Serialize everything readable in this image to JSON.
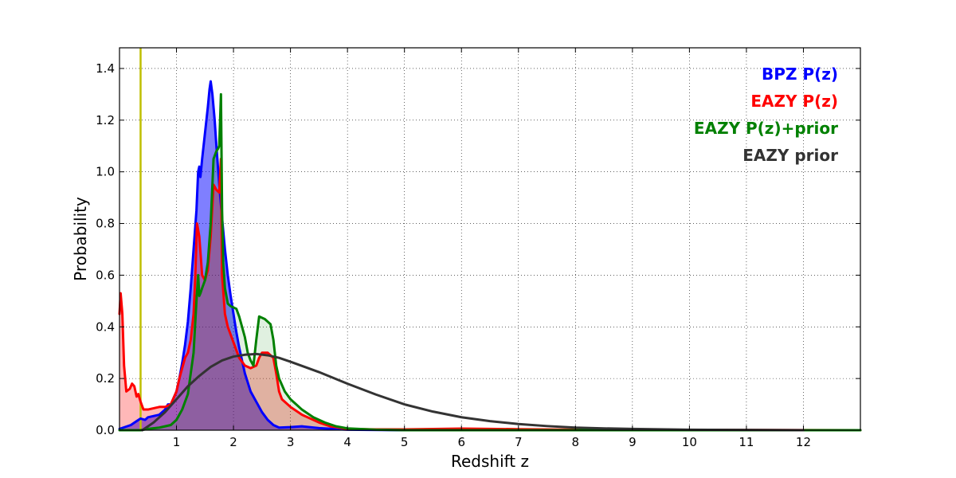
{
  "chart_data": {
    "type": "area",
    "title": "",
    "xlabel": "Redshift z",
    "ylabel": "Probability",
    "xlim": [
      0,
      13
    ],
    "ylim": [
      0,
      1.48
    ],
    "x_ticks": [
      1,
      2,
      3,
      4,
      5,
      6,
      7,
      8,
      9,
      10,
      11,
      12
    ],
    "y_ticks": [
      0.0,
      0.2,
      0.4,
      0.6,
      0.8,
      1.0,
      1.2,
      1.4
    ],
    "x_tick_labels": [
      "1",
      "2",
      "3",
      "4",
      "5",
      "6",
      "7",
      "8",
      "9",
      "10",
      "11",
      "12"
    ],
    "y_tick_labels": [
      "0.0",
      "0.2",
      "0.4",
      "0.6",
      "0.8",
      "1.0",
      "1.2",
      "1.4"
    ],
    "grid": true,
    "legend_position": "top-right",
    "vline": {
      "x": 0.37,
      "color": "#bfbf00"
    },
    "series": [
      {
        "name": "BPZ P(z)",
        "color": "#0000ff",
        "fill": "#0000ff",
        "fill_opacity": 0.5,
        "x": [
          0,
          0.2,
          0.3,
          0.37,
          0.45,
          0.5,
          0.6,
          0.7,
          0.8,
          0.85,
          0.9,
          1.0,
          1.05,
          1.1,
          1.15,
          1.2,
          1.25,
          1.3,
          1.35,
          1.38,
          1.4,
          1.42,
          1.45,
          1.5,
          1.55,
          1.58,
          1.6,
          1.63,
          1.67,
          1.7,
          1.75,
          1.8,
          1.85,
          1.9,
          1.95,
          2.0,
          2.05,
          2.1,
          2.15,
          2.2,
          2.3,
          2.4,
          2.5,
          2.6,
          2.7,
          2.8,
          3.0,
          3.2,
          3.5,
          4.0,
          5.0,
          13
        ],
        "y": [
          0.005,
          0.02,
          0.035,
          0.045,
          0.04,
          0.05,
          0.055,
          0.06,
          0.08,
          0.1,
          0.1,
          0.15,
          0.2,
          0.26,
          0.33,
          0.42,
          0.55,
          0.7,
          0.85,
          1.0,
          1.02,
          0.98,
          1.05,
          1.15,
          1.25,
          1.32,
          1.35,
          1.3,
          1.2,
          1.1,
          0.95,
          0.82,
          0.7,
          0.6,
          0.52,
          0.45,
          0.38,
          0.32,
          0.27,
          0.22,
          0.15,
          0.11,
          0.07,
          0.04,
          0.02,
          0.01,
          0.012,
          0.015,
          0.008,
          0.002,
          0.0,
          0.0
        ]
      },
      {
        "name": "EAZY P(z)",
        "color": "#ff0000",
        "fill": "#ff0000",
        "fill_opacity": 0.28,
        "x": [
          0,
          0.02,
          0.05,
          0.08,
          0.12,
          0.18,
          0.22,
          0.26,
          0.3,
          0.33,
          0.37,
          0.42,
          0.5,
          0.6,
          0.7,
          0.8,
          0.9,
          1.0,
          1.05,
          1.1,
          1.15,
          1.2,
          1.25,
          1.3,
          1.33,
          1.36,
          1.4,
          1.45,
          1.5,
          1.55,
          1.6,
          1.65,
          1.7,
          1.75,
          1.78,
          1.8,
          1.85,
          1.9,
          2.0,
          2.1,
          2.2,
          2.3,
          2.4,
          2.45,
          2.5,
          2.6,
          2.7,
          2.75,
          2.8,
          2.85,
          3.0,
          3.2,
          3.5,
          3.7,
          4.0,
          4.5,
          5.0,
          6.0,
          7.0,
          8.0,
          13
        ],
        "y": [
          0.45,
          0.53,
          0.45,
          0.25,
          0.15,
          0.16,
          0.18,
          0.17,
          0.13,
          0.14,
          0.11,
          0.08,
          0.08,
          0.085,
          0.09,
          0.09,
          0.1,
          0.15,
          0.2,
          0.24,
          0.28,
          0.3,
          0.35,
          0.45,
          0.6,
          0.8,
          0.75,
          0.6,
          0.58,
          0.62,
          0.75,
          0.95,
          0.93,
          0.92,
          1.05,
          0.6,
          0.45,
          0.4,
          0.34,
          0.28,
          0.25,
          0.24,
          0.25,
          0.28,
          0.3,
          0.3,
          0.28,
          0.22,
          0.15,
          0.12,
          0.09,
          0.06,
          0.03,
          0.015,
          0.005,
          0.003,
          0.003,
          0.006,
          0.004,
          0.002,
          0.0
        ]
      },
      {
        "name": "EAZY P(z)+prior",
        "color": "#008000",
        "fill": "#008000",
        "fill_opacity": 0.12,
        "x": [
          0,
          0.2,
          0.37,
          0.5,
          0.7,
          0.9,
          1.0,
          1.1,
          1.2,
          1.3,
          1.35,
          1.38,
          1.4,
          1.42,
          1.45,
          1.5,
          1.55,
          1.6,
          1.65,
          1.7,
          1.73,
          1.75,
          1.78,
          1.8,
          1.82,
          1.85,
          1.9,
          1.95,
          2.05,
          2.1,
          2.15,
          2.2,
          2.25,
          2.3,
          2.35,
          2.4,
          2.45,
          2.55,
          2.65,
          2.7,
          2.75,
          2.8,
          2.9,
          3.0,
          3.2,
          3.4,
          3.6,
          3.8,
          4.0,
          4.5,
          5.0,
          13
        ],
        "y": [
          0.0,
          0.0,
          0.0,
          0.005,
          0.01,
          0.02,
          0.04,
          0.08,
          0.14,
          0.3,
          0.5,
          0.6,
          0.52,
          0.53,
          0.55,
          0.58,
          0.65,
          0.8,
          1.05,
          1.08,
          1.09,
          1.1,
          1.3,
          0.85,
          0.65,
          0.55,
          0.49,
          0.48,
          0.47,
          0.44,
          0.4,
          0.36,
          0.3,
          0.27,
          0.25,
          0.35,
          0.44,
          0.43,
          0.41,
          0.35,
          0.25,
          0.2,
          0.15,
          0.12,
          0.08,
          0.05,
          0.03,
          0.015,
          0.007,
          0.002,
          0.0,
          0.0
        ]
      },
      {
        "name": "EAZY prior",
        "color": "#333333",
        "fill": "none",
        "x": [
          0.4,
          0.6,
          0.8,
          1.0,
          1.2,
          1.4,
          1.6,
          1.8,
          2.0,
          2.2,
          2.4,
          2.6,
          2.8,
          3.0,
          3.5,
          4.0,
          4.5,
          5.0,
          5.5,
          6.0,
          6.5,
          7.0,
          7.5,
          8.0,
          8.5,
          9.0,
          10.0,
          11.0,
          12.0
        ],
        "y": [
          0.0,
          0.03,
          0.07,
          0.12,
          0.17,
          0.21,
          0.245,
          0.27,
          0.285,
          0.292,
          0.295,
          0.29,
          0.28,
          0.265,
          0.225,
          0.18,
          0.138,
          0.1,
          0.072,
          0.05,
          0.035,
          0.024,
          0.016,
          0.01,
          0.007,
          0.005,
          0.002,
          0.001,
          0.0
        ]
      }
    ]
  }
}
